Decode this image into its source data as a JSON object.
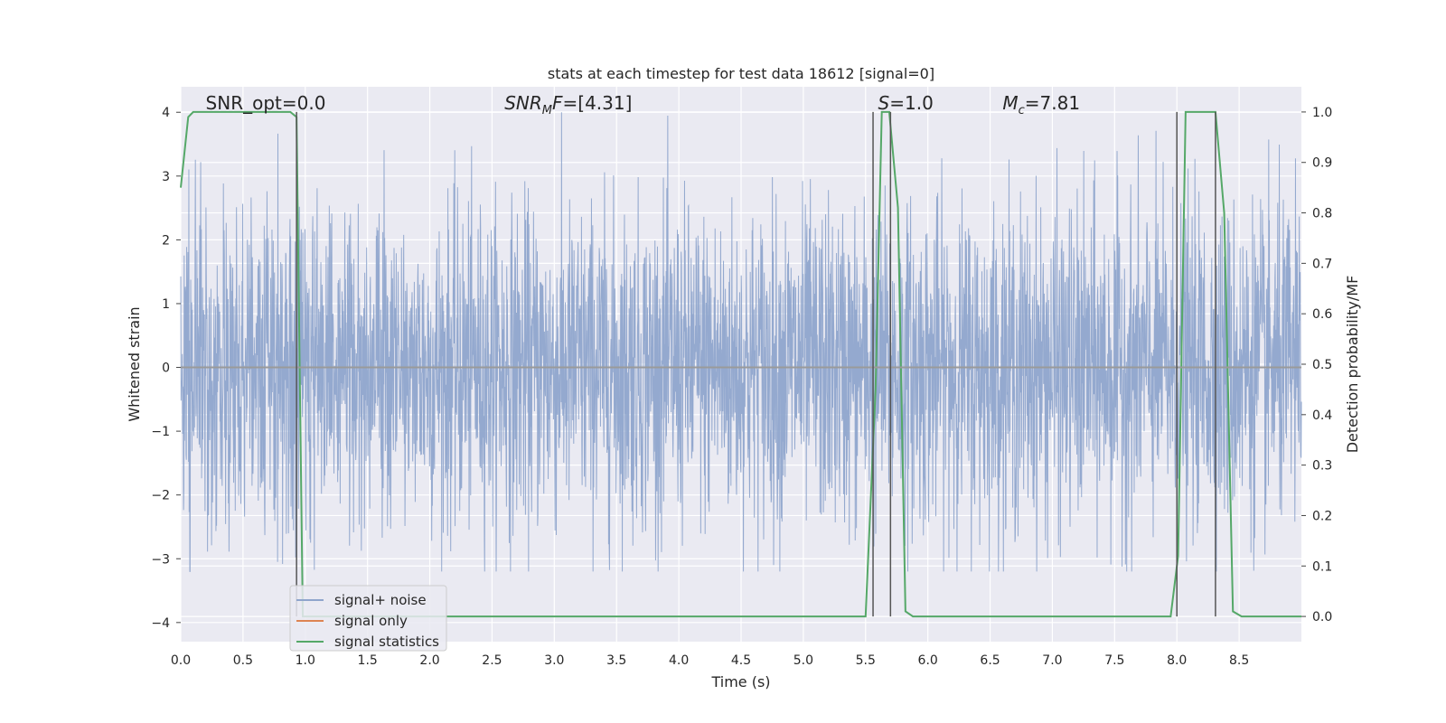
{
  "chart_data": {
    "type": "line",
    "title": "stats at each timestep for test data 18612 [signal=0]",
    "xlabel": "Time (s)",
    "ylabel": "Whitened strain",
    "y2label": "Detection probability/MF",
    "xlim": [
      0.0,
      9.0
    ],
    "ylim": [
      -4.3,
      4.4
    ],
    "y2lim": [
      -0.05,
      1.05
    ],
    "xticks": [
      "0.0",
      "0.5",
      "1.0",
      "1.5",
      "2.0",
      "2.5",
      "3.0",
      "3.5",
      "4.0",
      "4.5",
      "5.0",
      "5.5",
      "6.0",
      "6.5",
      "7.0",
      "7.5",
      "8.0",
      "8.5"
    ],
    "yticks": [
      "4",
      "3",
      "2",
      "1",
      "0",
      "−1",
      "−2",
      "−3",
      "−4"
    ],
    "y2ticks": [
      "1.0",
      "0.9",
      "0.8",
      "0.7",
      "0.6",
      "0.5",
      "0.4",
      "0.3",
      "0.2",
      "0.1",
      "0.0"
    ],
    "grid": true,
    "legend_position": "lower-left",
    "annotations": [
      {
        "text": "SNR_opt=0.0",
        "x": 0.2
      },
      {
        "text": "SNR_MF=[4.31]",
        "x": 2.6
      },
      {
        "text": "S=1.0",
        "x": 5.6
      },
      {
        "text": "M_c=7.81",
        "x": 6.6
      }
    ],
    "series": [
      {
        "name": "signal+ noise",
        "color": "#8fa5cc",
        "axis": "left",
        "style": "noise",
        "envelope_typical": 2.0,
        "envelope_peak": 4.0
      },
      {
        "name": "signal only",
        "color": "#dd8452",
        "axis": "left",
        "x": [
          0.0,
          9.0
        ],
        "y": [
          0.0,
          0.0
        ]
      },
      {
        "name": "signal statistics",
        "color": "#55a868",
        "axis": "right",
        "x": [
          0.0,
          0.06,
          0.1,
          0.3,
          0.5,
          0.7,
          0.88,
          0.93,
          0.98,
          1.05,
          2.0,
          3.0,
          4.0,
          5.0,
          5.5,
          5.58,
          5.63,
          5.69,
          5.76,
          5.82,
          5.88,
          6.5,
          7.0,
          7.5,
          7.95,
          8.01,
          8.07,
          8.2,
          8.31,
          8.38,
          8.45,
          8.52,
          9.0
        ],
        "y": [
          0.85,
          0.99,
          1.0,
          1.0,
          1.0,
          1.0,
          1.0,
          0.99,
          0.0,
          0.0,
          0.0,
          0.0,
          0.0,
          0.0,
          0.0,
          0.45,
          1.0,
          1.0,
          0.81,
          0.01,
          0.0,
          0.0,
          0.0,
          0.0,
          0.0,
          0.12,
          1.0,
          1.0,
          1.0,
          0.8,
          0.01,
          0.0,
          0.0
        ]
      }
    ],
    "vertical_markers": [
      0.93,
      5.56,
      5.7,
      8.0,
      8.31
    ]
  }
}
